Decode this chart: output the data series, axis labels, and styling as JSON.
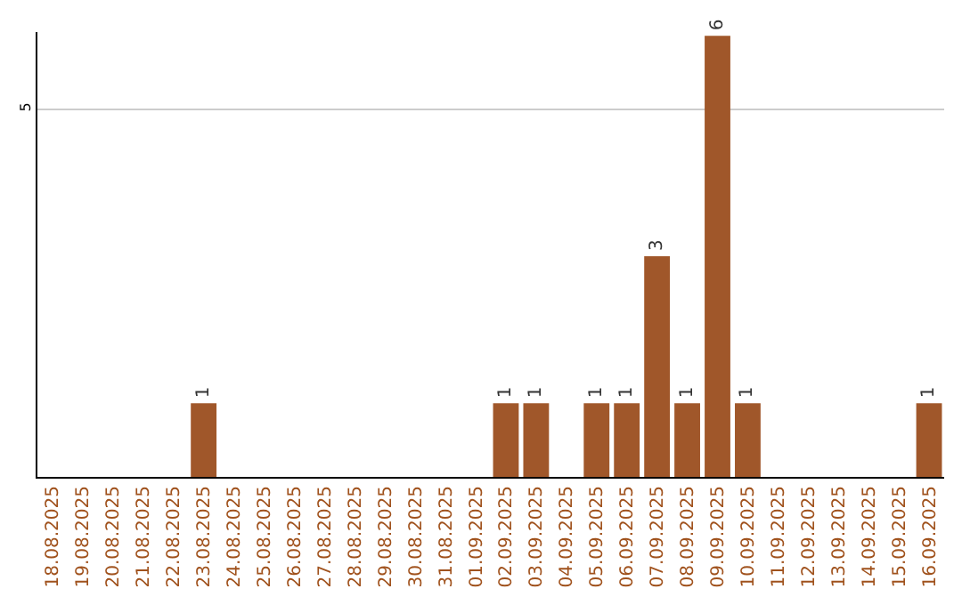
{
  "chart_data": {
    "type": "bar",
    "categories": [
      "18.08.2025",
      "19.08.2025",
      "20.08.2025",
      "21.08.2025",
      "22.08.2025",
      "23.08.2025",
      "24.08.2025",
      "25.08.2025",
      "26.08.2025",
      "27.08.2025",
      "28.08.2025",
      "29.08.2025",
      "30.08.2025",
      "31.08.2025",
      "01.09.2025",
      "02.09.2025",
      "03.09.2025",
      "04.09.2025",
      "05.09.2025",
      "06.09.2025",
      "07.09.2025",
      "08.09.2025",
      "09.09.2025",
      "10.09.2025",
      "11.09.2025",
      "12.09.2025",
      "13.09.2025",
      "14.09.2025",
      "15.09.2025",
      "16.09.2025"
    ],
    "values": [
      0,
      0,
      0,
      0,
      0,
      1,
      0,
      0,
      0,
      0,
      0,
      0,
      0,
      0,
      0,
      1,
      1,
      0,
      1,
      1,
      3,
      1,
      6,
      1,
      0,
      0,
      0,
      0,
      0,
      1
    ],
    "value_labels": [
      null,
      null,
      null,
      null,
      null,
      "1",
      null,
      null,
      null,
      null,
      null,
      null,
      null,
      null,
      null,
      "1",
      "1",
      null,
      "1",
      "1",
      "3",
      "1",
      "6",
      "1",
      null,
      null,
      null,
      null,
      null,
      "1"
    ],
    "color": "#a0572a",
    "ylim": [
      0,
      6.05
    ],
    "yticks": [
      5
    ],
    "grid": "y",
    "legend": false
  }
}
